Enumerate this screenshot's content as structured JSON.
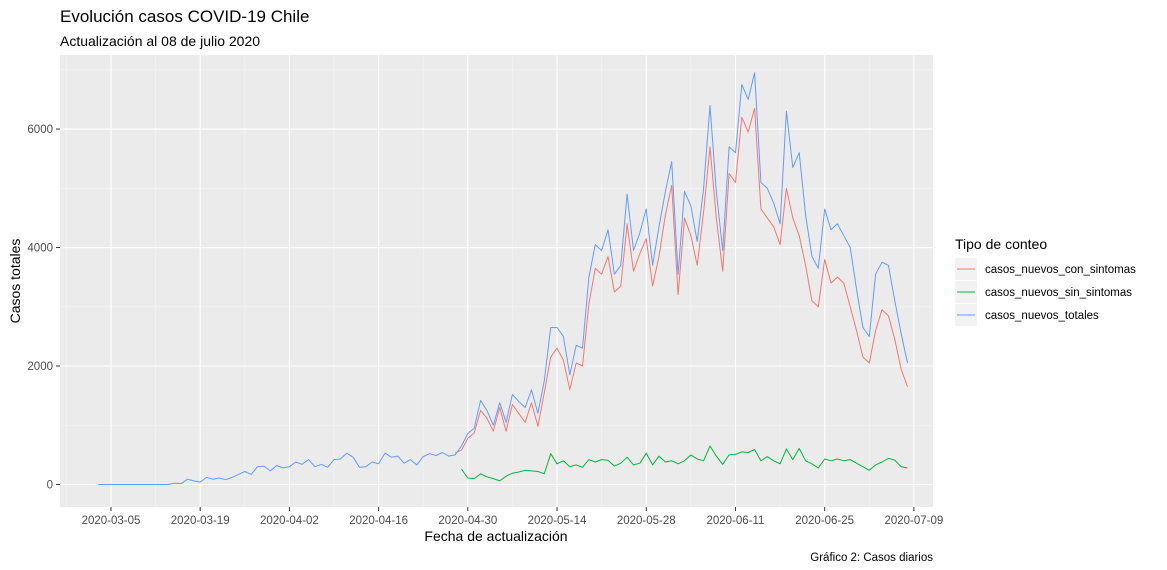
{
  "chart_data": {
    "type": "line",
    "title": "Evolución casos COVID-19 Chile",
    "subtitle": "Actualización al 08 de julio 2020",
    "xlabel": "Fecha de actualización",
    "ylabel": "Casos totales",
    "caption": "Gráfico 2: Casos diarios",
    "legend_title": "Tipo de conteo",
    "legend_position": "right",
    "grid": true,
    "xlim": [
      "2020-02-26",
      "2020-07-12"
    ],
    "ylim": [
      -380,
      7250
    ],
    "x_ticks": [
      "2020-03-05",
      "2020-03-19",
      "2020-04-02",
      "2020-04-16",
      "2020-04-30",
      "2020-05-14",
      "2020-05-28",
      "2020-06-11",
      "2020-06-25",
      "2020-07-09"
    ],
    "y_ticks": [
      0,
      2000,
      4000,
      6000
    ],
    "series": [
      {
        "name": "casos_nuevos_con_sintomas",
        "color": "#F8766D",
        "points": [
          [
            "2020-04-28",
            530
          ],
          [
            "2020-04-29",
            580
          ],
          [
            "2020-04-30",
            780
          ],
          [
            "2020-05-01",
            870
          ],
          [
            "2020-05-02",
            1250
          ],
          [
            "2020-05-03",
            1120
          ],
          [
            "2020-05-04",
            900
          ],
          [
            "2020-05-05",
            1300
          ],
          [
            "2020-05-06",
            900
          ],
          [
            "2020-05-07",
            1350
          ],
          [
            "2020-05-08",
            1200
          ],
          [
            "2020-05-09",
            1050
          ],
          [
            "2020-05-10",
            1380
          ],
          [
            "2020-05-11",
            980
          ],
          [
            "2020-05-12",
            1550
          ],
          [
            "2020-05-13",
            2150
          ],
          [
            "2020-05-14",
            2300
          ],
          [
            "2020-05-15",
            2100
          ],
          [
            "2020-05-16",
            1600
          ],
          [
            "2020-05-17",
            2050
          ],
          [
            "2020-05-18",
            2000
          ],
          [
            "2020-05-19",
            3050
          ],
          [
            "2020-05-20",
            3650
          ],
          [
            "2020-05-21",
            3550
          ],
          [
            "2020-05-22",
            3850
          ],
          [
            "2020-05-23",
            3250
          ],
          [
            "2020-05-24",
            3350
          ],
          [
            "2020-05-25",
            4400
          ],
          [
            "2020-05-26",
            3600
          ],
          [
            "2020-05-27",
            3900
          ],
          [
            "2020-05-28",
            4150
          ],
          [
            "2020-05-29",
            3350
          ],
          [
            "2020-05-30",
            3850
          ],
          [
            "2020-05-31",
            4550
          ],
          [
            "2020-06-01",
            5050
          ],
          [
            "2020-06-02",
            3200
          ],
          [
            "2020-06-03",
            4500
          ],
          [
            "2020-06-04",
            4200
          ],
          [
            "2020-06-05",
            3700
          ],
          [
            "2020-06-06",
            4600
          ],
          [
            "2020-06-07",
            5700
          ],
          [
            "2020-06-08",
            4500
          ],
          [
            "2020-06-09",
            3600
          ],
          [
            "2020-06-10",
            5250
          ],
          [
            "2020-06-11",
            5100
          ],
          [
            "2020-06-12",
            6200
          ],
          [
            "2020-06-13",
            5950
          ],
          [
            "2020-06-14",
            6350
          ],
          [
            "2020-06-15",
            4650
          ],
          [
            "2020-06-16",
            4500
          ],
          [
            "2020-06-17",
            4350
          ],
          [
            "2020-06-18",
            4050
          ],
          [
            "2020-06-19",
            5000
          ],
          [
            "2020-06-20",
            4500
          ],
          [
            "2020-06-21",
            4200
          ],
          [
            "2020-06-22",
            3700
          ],
          [
            "2020-06-23",
            3100
          ],
          [
            "2020-06-24",
            3000
          ],
          [
            "2020-06-25",
            3800
          ],
          [
            "2020-06-26",
            3400
          ],
          [
            "2020-06-27",
            3500
          ],
          [
            "2020-06-28",
            3400
          ],
          [
            "2020-06-29",
            3000
          ],
          [
            "2020-06-30",
            2600
          ],
          [
            "2020-07-01",
            2150
          ],
          [
            "2020-07-02",
            2050
          ],
          [
            "2020-07-03",
            2600
          ],
          [
            "2020-07-04",
            2950
          ],
          [
            "2020-07-05",
            2850
          ],
          [
            "2020-07-06",
            2450
          ],
          [
            "2020-07-07",
            1950
          ],
          [
            "2020-07-08",
            1650
          ]
        ]
      },
      {
        "name": "casos_nuevos_sin_sintomas",
        "color": "#00BA38",
        "points": [
          [
            "2020-04-29",
            260
          ],
          [
            "2020-04-30",
            110
          ],
          [
            "2020-05-01",
            100
          ],
          [
            "2020-05-02",
            180
          ],
          [
            "2020-05-03",
            130
          ],
          [
            "2020-05-04",
            100
          ],
          [
            "2020-05-05",
            60
          ],
          [
            "2020-05-06",
            140
          ],
          [
            "2020-05-07",
            190
          ],
          [
            "2020-05-08",
            210
          ],
          [
            "2020-05-09",
            240
          ],
          [
            "2020-05-10",
            230
          ],
          [
            "2020-05-11",
            220
          ],
          [
            "2020-05-12",
            180
          ],
          [
            "2020-05-13",
            520
          ],
          [
            "2020-05-14",
            350
          ],
          [
            "2020-05-15",
            400
          ],
          [
            "2020-05-16",
            300
          ],
          [
            "2020-05-17",
            330
          ],
          [
            "2020-05-18",
            290
          ],
          [
            "2020-05-19",
            420
          ],
          [
            "2020-05-20",
            380
          ],
          [
            "2020-05-21",
            420
          ],
          [
            "2020-05-22",
            410
          ],
          [
            "2020-05-23",
            310
          ],
          [
            "2020-05-24",
            360
          ],
          [
            "2020-05-25",
            460
          ],
          [
            "2020-05-26",
            330
          ],
          [
            "2020-05-27",
            360
          ],
          [
            "2020-05-28",
            530
          ],
          [
            "2020-05-29",
            330
          ],
          [
            "2020-05-30",
            480
          ],
          [
            "2020-05-31",
            380
          ],
          [
            "2020-06-01",
            400
          ],
          [
            "2020-06-02",
            350
          ],
          [
            "2020-06-03",
            400
          ],
          [
            "2020-06-04",
            500
          ],
          [
            "2020-06-05",
            430
          ],
          [
            "2020-06-06",
            400
          ],
          [
            "2020-06-07",
            650
          ],
          [
            "2020-06-08",
            480
          ],
          [
            "2020-06-09",
            340
          ],
          [
            "2020-06-10",
            500
          ],
          [
            "2020-06-11",
            510
          ],
          [
            "2020-06-12",
            550
          ],
          [
            "2020-06-13",
            540
          ],
          [
            "2020-06-14",
            590
          ],
          [
            "2020-06-15",
            400
          ],
          [
            "2020-06-16",
            470
          ],
          [
            "2020-06-17",
            400
          ],
          [
            "2020-06-18",
            350
          ],
          [
            "2020-06-19",
            600
          ],
          [
            "2020-06-20",
            420
          ],
          [
            "2020-06-21",
            610
          ],
          [
            "2020-06-22",
            400
          ],
          [
            "2020-06-23",
            350
          ],
          [
            "2020-06-24",
            280
          ],
          [
            "2020-06-25",
            430
          ],
          [
            "2020-06-26",
            400
          ],
          [
            "2020-06-27",
            430
          ],
          [
            "2020-06-28",
            400
          ],
          [
            "2020-06-29",
            420
          ],
          [
            "2020-06-30",
            360
          ],
          [
            "2020-07-01",
            300
          ],
          [
            "2020-07-02",
            240
          ],
          [
            "2020-07-03",
            330
          ],
          [
            "2020-07-04",
            380
          ],
          [
            "2020-07-05",
            440
          ],
          [
            "2020-07-06",
            410
          ],
          [
            "2020-07-07",
            300
          ],
          [
            "2020-07-08",
            280
          ]
        ]
      },
      {
        "name": "casos_nuevos_totales",
        "color": "#619CFF",
        "points": [
          [
            "2020-03-03",
            0
          ],
          [
            "2020-03-04",
            0
          ],
          [
            "2020-03-05",
            0
          ],
          [
            "2020-03-06",
            0
          ],
          [
            "2020-03-07",
            0
          ],
          [
            "2020-03-08",
            0
          ],
          [
            "2020-03-09",
            0
          ],
          [
            "2020-03-10",
            0
          ],
          [
            "2020-03-11",
            0
          ],
          [
            "2020-03-12",
            0
          ],
          [
            "2020-03-13",
            0
          ],
          [
            "2020-03-14",
            0
          ],
          [
            "2020-03-15",
            20
          ],
          [
            "2020-03-16",
            15
          ],
          [
            "2020-03-17",
            90
          ],
          [
            "2020-03-18",
            60
          ],
          [
            "2020-03-19",
            40
          ],
          [
            "2020-03-20",
            120
          ],
          [
            "2020-03-21",
            90
          ],
          [
            "2020-03-22",
            110
          ],
          [
            "2020-03-23",
            80
          ],
          [
            "2020-03-24",
            120
          ],
          [
            "2020-03-25",
            170
          ],
          [
            "2020-03-26",
            220
          ],
          [
            "2020-03-27",
            170
          ],
          [
            "2020-03-28",
            300
          ],
          [
            "2020-03-29",
            310
          ],
          [
            "2020-03-30",
            230
          ],
          [
            "2020-03-31",
            320
          ],
          [
            "2020-04-01",
            280
          ],
          [
            "2020-04-02",
            300
          ],
          [
            "2020-04-03",
            380
          ],
          [
            "2020-04-04",
            340
          ],
          [
            "2020-04-05",
            420
          ],
          [
            "2020-04-06",
            300
          ],
          [
            "2020-04-07",
            340
          ],
          [
            "2020-04-08",
            290
          ],
          [
            "2020-04-09",
            420
          ],
          [
            "2020-04-10",
            430
          ],
          [
            "2020-04-11",
            530
          ],
          [
            "2020-04-12",
            460
          ],
          [
            "2020-04-13",
            290
          ],
          [
            "2020-04-14",
            300
          ],
          [
            "2020-04-15",
            380
          ],
          [
            "2020-04-16",
            350
          ],
          [
            "2020-04-17",
            530
          ],
          [
            "2020-04-18",
            460
          ],
          [
            "2020-04-19",
            480
          ],
          [
            "2020-04-20",
            360
          ],
          [
            "2020-04-21",
            420
          ],
          [
            "2020-04-22",
            330
          ],
          [
            "2020-04-23",
            470
          ],
          [
            "2020-04-24",
            520
          ],
          [
            "2020-04-25",
            490
          ],
          [
            "2020-04-26",
            540
          ],
          [
            "2020-04-27",
            480
          ],
          [
            "2020-04-28",
            500
          ],
          [
            "2020-04-29",
            650
          ],
          [
            "2020-04-30",
            860
          ],
          [
            "2020-05-01",
            950
          ],
          [
            "2020-05-02",
            1420
          ],
          [
            "2020-05-03",
            1250
          ],
          [
            "2020-05-04",
            1000
          ],
          [
            "2020-05-05",
            1380
          ],
          [
            "2020-05-06",
            1050
          ],
          [
            "2020-05-07",
            1520
          ],
          [
            "2020-05-08",
            1400
          ],
          [
            "2020-05-09",
            1300
          ],
          [
            "2020-05-10",
            1600
          ],
          [
            "2020-05-11",
            1200
          ],
          [
            "2020-05-12",
            1750
          ],
          [
            "2020-05-13",
            2650
          ],
          [
            "2020-05-14",
            2650
          ],
          [
            "2020-05-15",
            2500
          ],
          [
            "2020-05-16",
            1850
          ],
          [
            "2020-05-17",
            2350
          ],
          [
            "2020-05-18",
            2300
          ],
          [
            "2020-05-19",
            3500
          ],
          [
            "2020-05-20",
            4050
          ],
          [
            "2020-05-21",
            3950
          ],
          [
            "2020-05-22",
            4300
          ],
          [
            "2020-05-23",
            3550
          ],
          [
            "2020-05-24",
            3700
          ],
          [
            "2020-05-25",
            4900
          ],
          [
            "2020-05-26",
            3950
          ],
          [
            "2020-05-27",
            4250
          ],
          [
            "2020-05-28",
            4650
          ],
          [
            "2020-05-29",
            3700
          ],
          [
            "2020-05-30",
            4350
          ],
          [
            "2020-05-31",
            4950
          ],
          [
            "2020-06-01",
            5450
          ],
          [
            "2020-06-02",
            3550
          ],
          [
            "2020-06-03",
            4950
          ],
          [
            "2020-06-04",
            4700
          ],
          [
            "2020-06-05",
            4100
          ],
          [
            "2020-06-06",
            5000
          ],
          [
            "2020-06-07",
            6400
          ],
          [
            "2020-06-08",
            4950
          ],
          [
            "2020-06-09",
            3950
          ],
          [
            "2020-06-10",
            5700
          ],
          [
            "2020-06-11",
            5600
          ],
          [
            "2020-06-12",
            6750
          ],
          [
            "2020-06-13",
            6500
          ],
          [
            "2020-06-14",
            6950
          ],
          [
            "2020-06-15",
            5100
          ],
          [
            "2020-06-16",
            5000
          ],
          [
            "2020-06-17",
            4750
          ],
          [
            "2020-06-18",
            4400
          ],
          [
            "2020-06-19",
            6300
          ],
          [
            "2020-06-20",
            5350
          ],
          [
            "2020-06-21",
            5600
          ],
          [
            "2020-06-22",
            4550
          ],
          [
            "2020-06-23",
            3850
          ],
          [
            "2020-06-24",
            3650
          ],
          [
            "2020-06-25",
            4650
          ],
          [
            "2020-06-26",
            4300
          ],
          [
            "2020-06-27",
            4400
          ],
          [
            "2020-06-28",
            4200
          ],
          [
            "2020-06-29",
            4000
          ],
          [
            "2020-06-30",
            3300
          ],
          [
            "2020-07-01",
            2650
          ],
          [
            "2020-07-02",
            2500
          ],
          [
            "2020-07-03",
            3550
          ],
          [
            "2020-07-04",
            3750
          ],
          [
            "2020-07-05",
            3700
          ],
          [
            "2020-07-06",
            3100
          ],
          [
            "2020-07-07",
            2550
          ],
          [
            "2020-07-08",
            2050
          ]
        ]
      }
    ]
  }
}
